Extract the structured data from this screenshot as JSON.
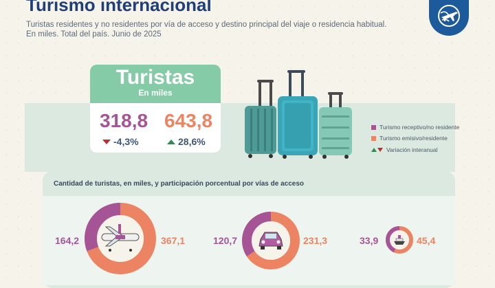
{
  "header": {
    "title": "Turismo internacional",
    "subtitle_line1": "Turistas residentes y no residentes por vía de acceso y destino principal del viaje o residencia habitual.",
    "subtitle_line2": "En miles. Total del país. Junio de 2025",
    "logo_icon": "globe-plane-icon"
  },
  "turistas": {
    "title": "Turistas",
    "unit": "En miles",
    "receptivo_value": "318,8",
    "receptivo_var": "-4,3%",
    "emisivo_value": "643,8",
    "emisivo_var": "28,6%"
  },
  "legend": {
    "receptivo": "Turismo receptivo/no residente",
    "emisivo": "Turismo emisivo/residente",
    "variacion": "Variación interanual"
  },
  "colors": {
    "receptivo": "#a55596",
    "emisivo": "#ec8463",
    "title_blue": "#1f3f79",
    "accent_green": "#86cba7"
  },
  "access": {
    "title": "Cantidad de turistas, en miles, y participación porcentual por vías de acceso",
    "items": [
      {
        "mode": "Aérea",
        "icon": "airplane-icon",
        "receptivo": "164,2",
        "emisivo": "367,1"
      },
      {
        "mode": "Terrestre",
        "icon": "car-icon",
        "receptivo": "120,7",
        "emisivo": "231,3"
      },
      {
        "mode": "Fluvial/marítima",
        "icon": "ship-icon",
        "receptivo": "33,9",
        "emisivo": "45,4"
      }
    ]
  }
}
